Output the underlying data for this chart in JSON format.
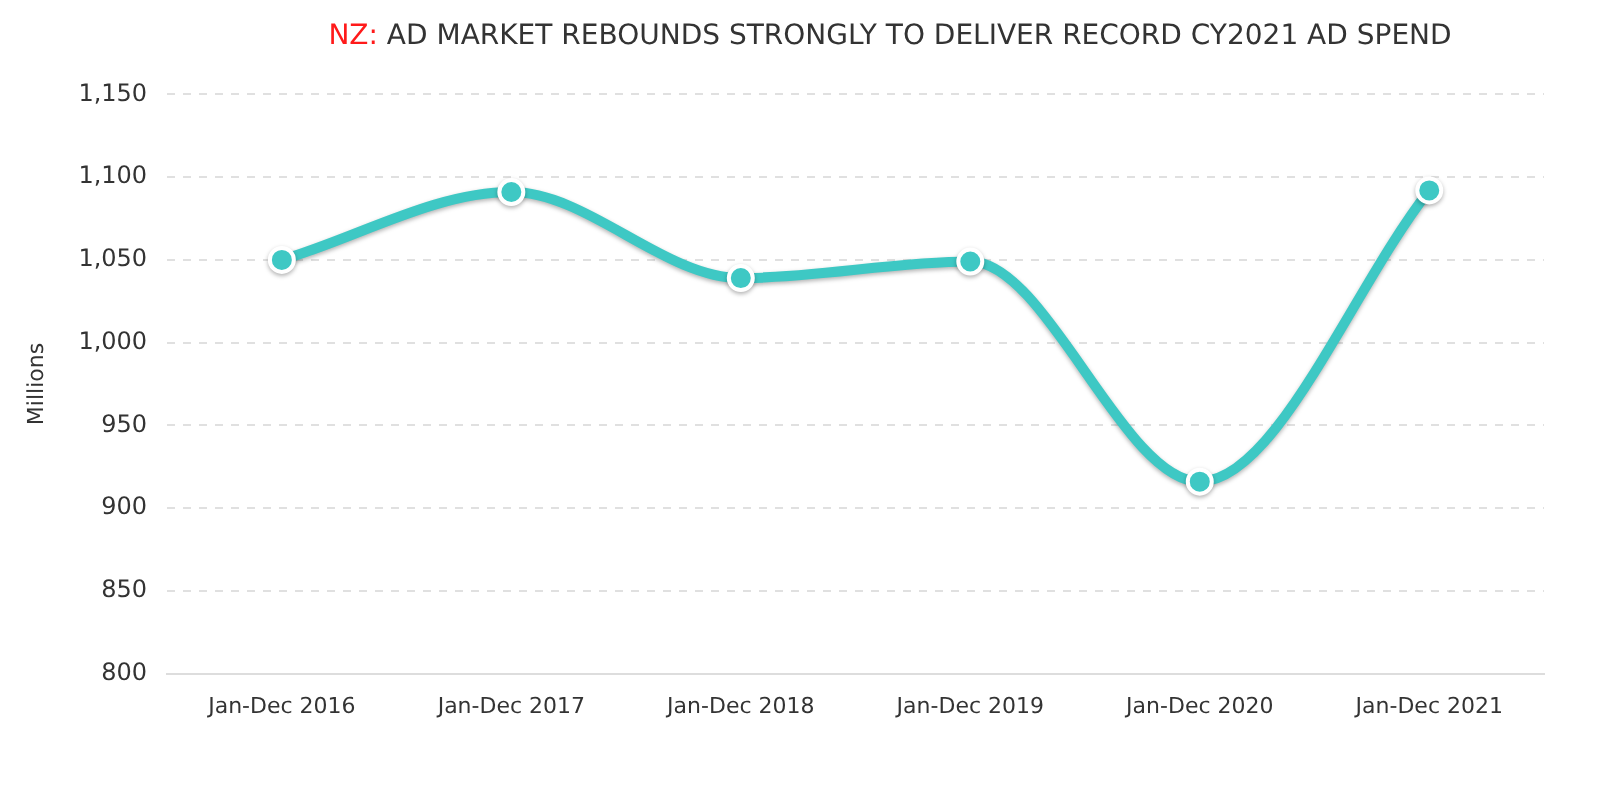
{
  "chart_data": {
    "type": "line",
    "title": "NZ: AD MARKET REBOUNDS STRONGLY TO DELIVER RECORD CY2021 AD SPEND",
    "ylabel": "Millions",
    "categories": [
      "Jan-Dec 2016",
      "Jan-Dec 2017",
      "Jan-Dec 2018",
      "Jan-Dec 2019",
      "Jan-Dec 2020",
      "Jan-Dec 2021"
    ],
    "series": [
      {
        "color": "#3ec8c4",
        "values": [
          1050,
          1091,
          1039,
          1049,
          916,
          1092
        ]
      }
    ],
    "ylim": [
      800,
      1150
    ],
    "yticks": [
      800,
      850,
      900,
      950,
      {
        "value": 1000,
        "label": "1,000"
      },
      {
        "value": 1050,
        "label": "1,050"
      },
      {
        "value": 1100,
        "label": "1,100"
      },
      {
        "value": 1150,
        "label": "1,150"
      }
    ],
    "grid": "y",
    "marker": "circle",
    "line_style": "solid",
    "legend": false
  }
}
